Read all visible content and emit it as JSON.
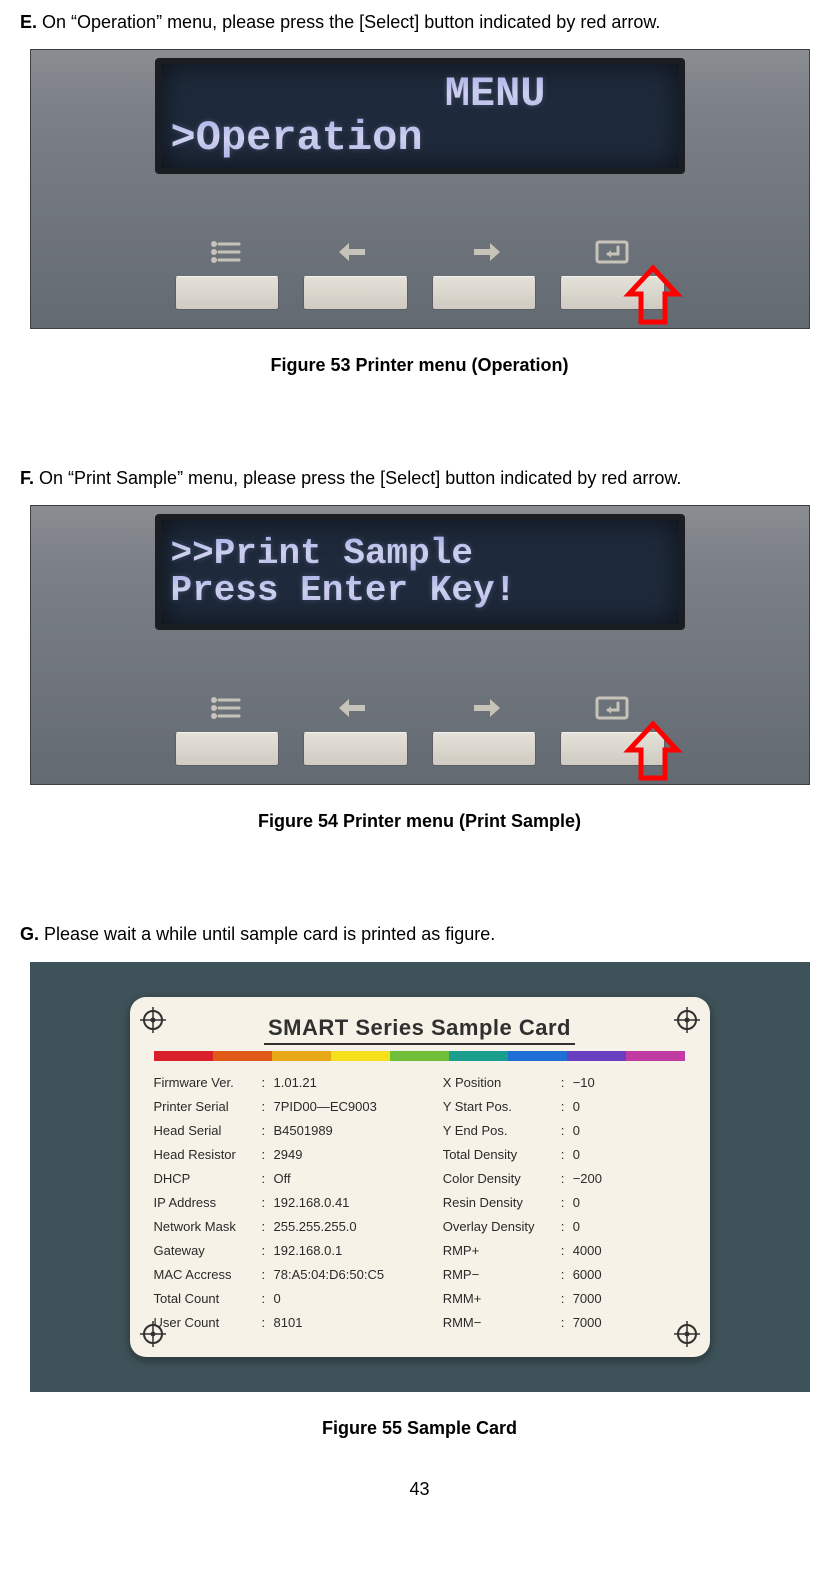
{
  "page_number": "43",
  "sections": {
    "E": {
      "letter": "E.",
      "text": " On “Operation” menu, please press the [Select] button indicated by red arrow.",
      "lcd_line1": "      MENU",
      "lcd_line2": ">Operation",
      "caption": "Figure 53 Printer menu (Operation)"
    },
    "F": {
      "letter": "F.",
      "text": " On “Print Sample” menu, please press the [Select] button indicated by red arrow.",
      "lcd_line1": ">>Print Sample",
      "lcd_line2": "Press Enter Key!",
      "caption": "Figure 54 Printer menu (Print Sample)"
    },
    "G": {
      "letter": "G.",
      "text": " Please wait a while until sample card is printed as figure.",
      "caption": "Figure 55 Sample Card"
    }
  },
  "card": {
    "title": "SMART Series Sample Card",
    "color_bar": [
      "#d81f2a",
      "#e05a1a",
      "#e8a917",
      "#f6e21a",
      "#6fbf3a",
      "#1a9e8e",
      "#1f6fd6",
      "#6a3ec0",
      "#c23aa3"
    ],
    "left_rows": [
      {
        "label": "Firmware Ver.",
        "value": "1.01.21"
      },
      {
        "label": "Printer Serial",
        "value": "7PID00—EC9003"
      },
      {
        "label": "Head Serial",
        "value": "B4501989"
      },
      {
        "label": "Head Resistor",
        "value": "2949"
      },
      {
        "label": "DHCP",
        "value": "Off"
      },
      {
        "label": "IP Address",
        "value": "192.168.0.41"
      },
      {
        "label": "Network Mask",
        "value": "255.255.255.0"
      },
      {
        "label": "Gateway",
        "value": "192.168.0.1"
      },
      {
        "label": "MAC Accress",
        "value": "78:A5:04:D6:50:C5"
      },
      {
        "label": "Total Count",
        "value": "0"
      },
      {
        "label": "User Count",
        "value": "8101"
      }
    ],
    "right_rows": [
      {
        "label": "X Position",
        "value": "−10"
      },
      {
        "label": "Y Start Pos.",
        "value": "0"
      },
      {
        "label": "Y End Pos.",
        "value": "0"
      },
      {
        "label": "Total Density",
        "value": "0"
      },
      {
        "label": "Color Density",
        "value": "−200"
      },
      {
        "label": "Resin Density",
        "value": "0"
      },
      {
        "label": "Overlay Density",
        "value": "0"
      },
      {
        "label": "RMP+",
        "value": "4000"
      },
      {
        "label": "RMP−",
        "value": "6000"
      },
      {
        "label": "RMM+",
        "value": "7000"
      },
      {
        "label": "RMM−",
        "value": "7000"
      }
    ]
  },
  "panel": {
    "arrow_color": "#ff0000",
    "icon_color": "#c8c3b8"
  }
}
